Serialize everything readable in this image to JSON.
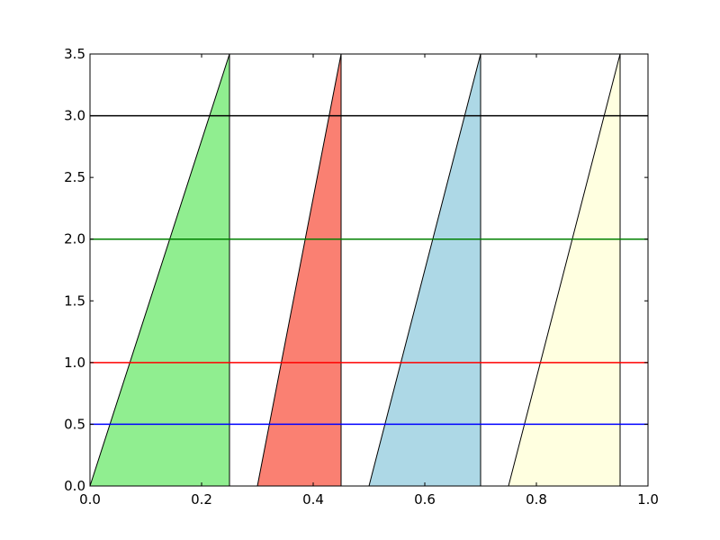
{
  "chart_data": {
    "type": "area",
    "title": "",
    "xlabel": "",
    "ylabel": "",
    "xlim": [
      0.0,
      1.0
    ],
    "ylim": [
      0.0,
      3.5
    ],
    "grid": false,
    "x_ticks": [
      0.0,
      0.2,
      0.4,
      0.6,
      0.8,
      1.0
    ],
    "x_tick_labels": [
      "0.0",
      "0.2",
      "0.4",
      "0.6",
      "0.8",
      "1.0"
    ],
    "y_ticks": [
      0.0,
      0.5,
      1.0,
      1.5,
      2.0,
      2.5,
      3.0,
      3.5
    ],
    "y_tick_labels": [
      "0.0",
      "0.5",
      "1.0",
      "1.5",
      "2.0",
      "2.5",
      "3.0",
      "3.5"
    ],
    "polygons": [
      {
        "points": [
          [
            0.0,
            0.0
          ],
          [
            0.25,
            3.5
          ],
          [
            0.25,
            0.0
          ]
        ],
        "fill": "#90ee90"
      },
      {
        "points": [
          [
            0.3,
            0.0
          ],
          [
            0.45,
            3.5
          ],
          [
            0.45,
            0.0
          ]
        ],
        "fill": "#fa8072"
      },
      {
        "points": [
          [
            0.5,
            0.0
          ],
          [
            0.7,
            3.5
          ],
          [
            0.7,
            0.0
          ]
        ],
        "fill": "#add8e6"
      },
      {
        "points": [
          [
            0.75,
            0.0
          ],
          [
            0.95,
            3.5
          ],
          [
            0.95,
            0.0
          ]
        ],
        "fill": "#ffffe0"
      }
    ],
    "hlines": [
      {
        "y": 0.5,
        "color": "#0000ff"
      },
      {
        "y": 1.0,
        "color": "#ff0000"
      },
      {
        "y": 2.0,
        "color": "#008000"
      },
      {
        "y": 3.0,
        "color": "#000000"
      }
    ]
  }
}
